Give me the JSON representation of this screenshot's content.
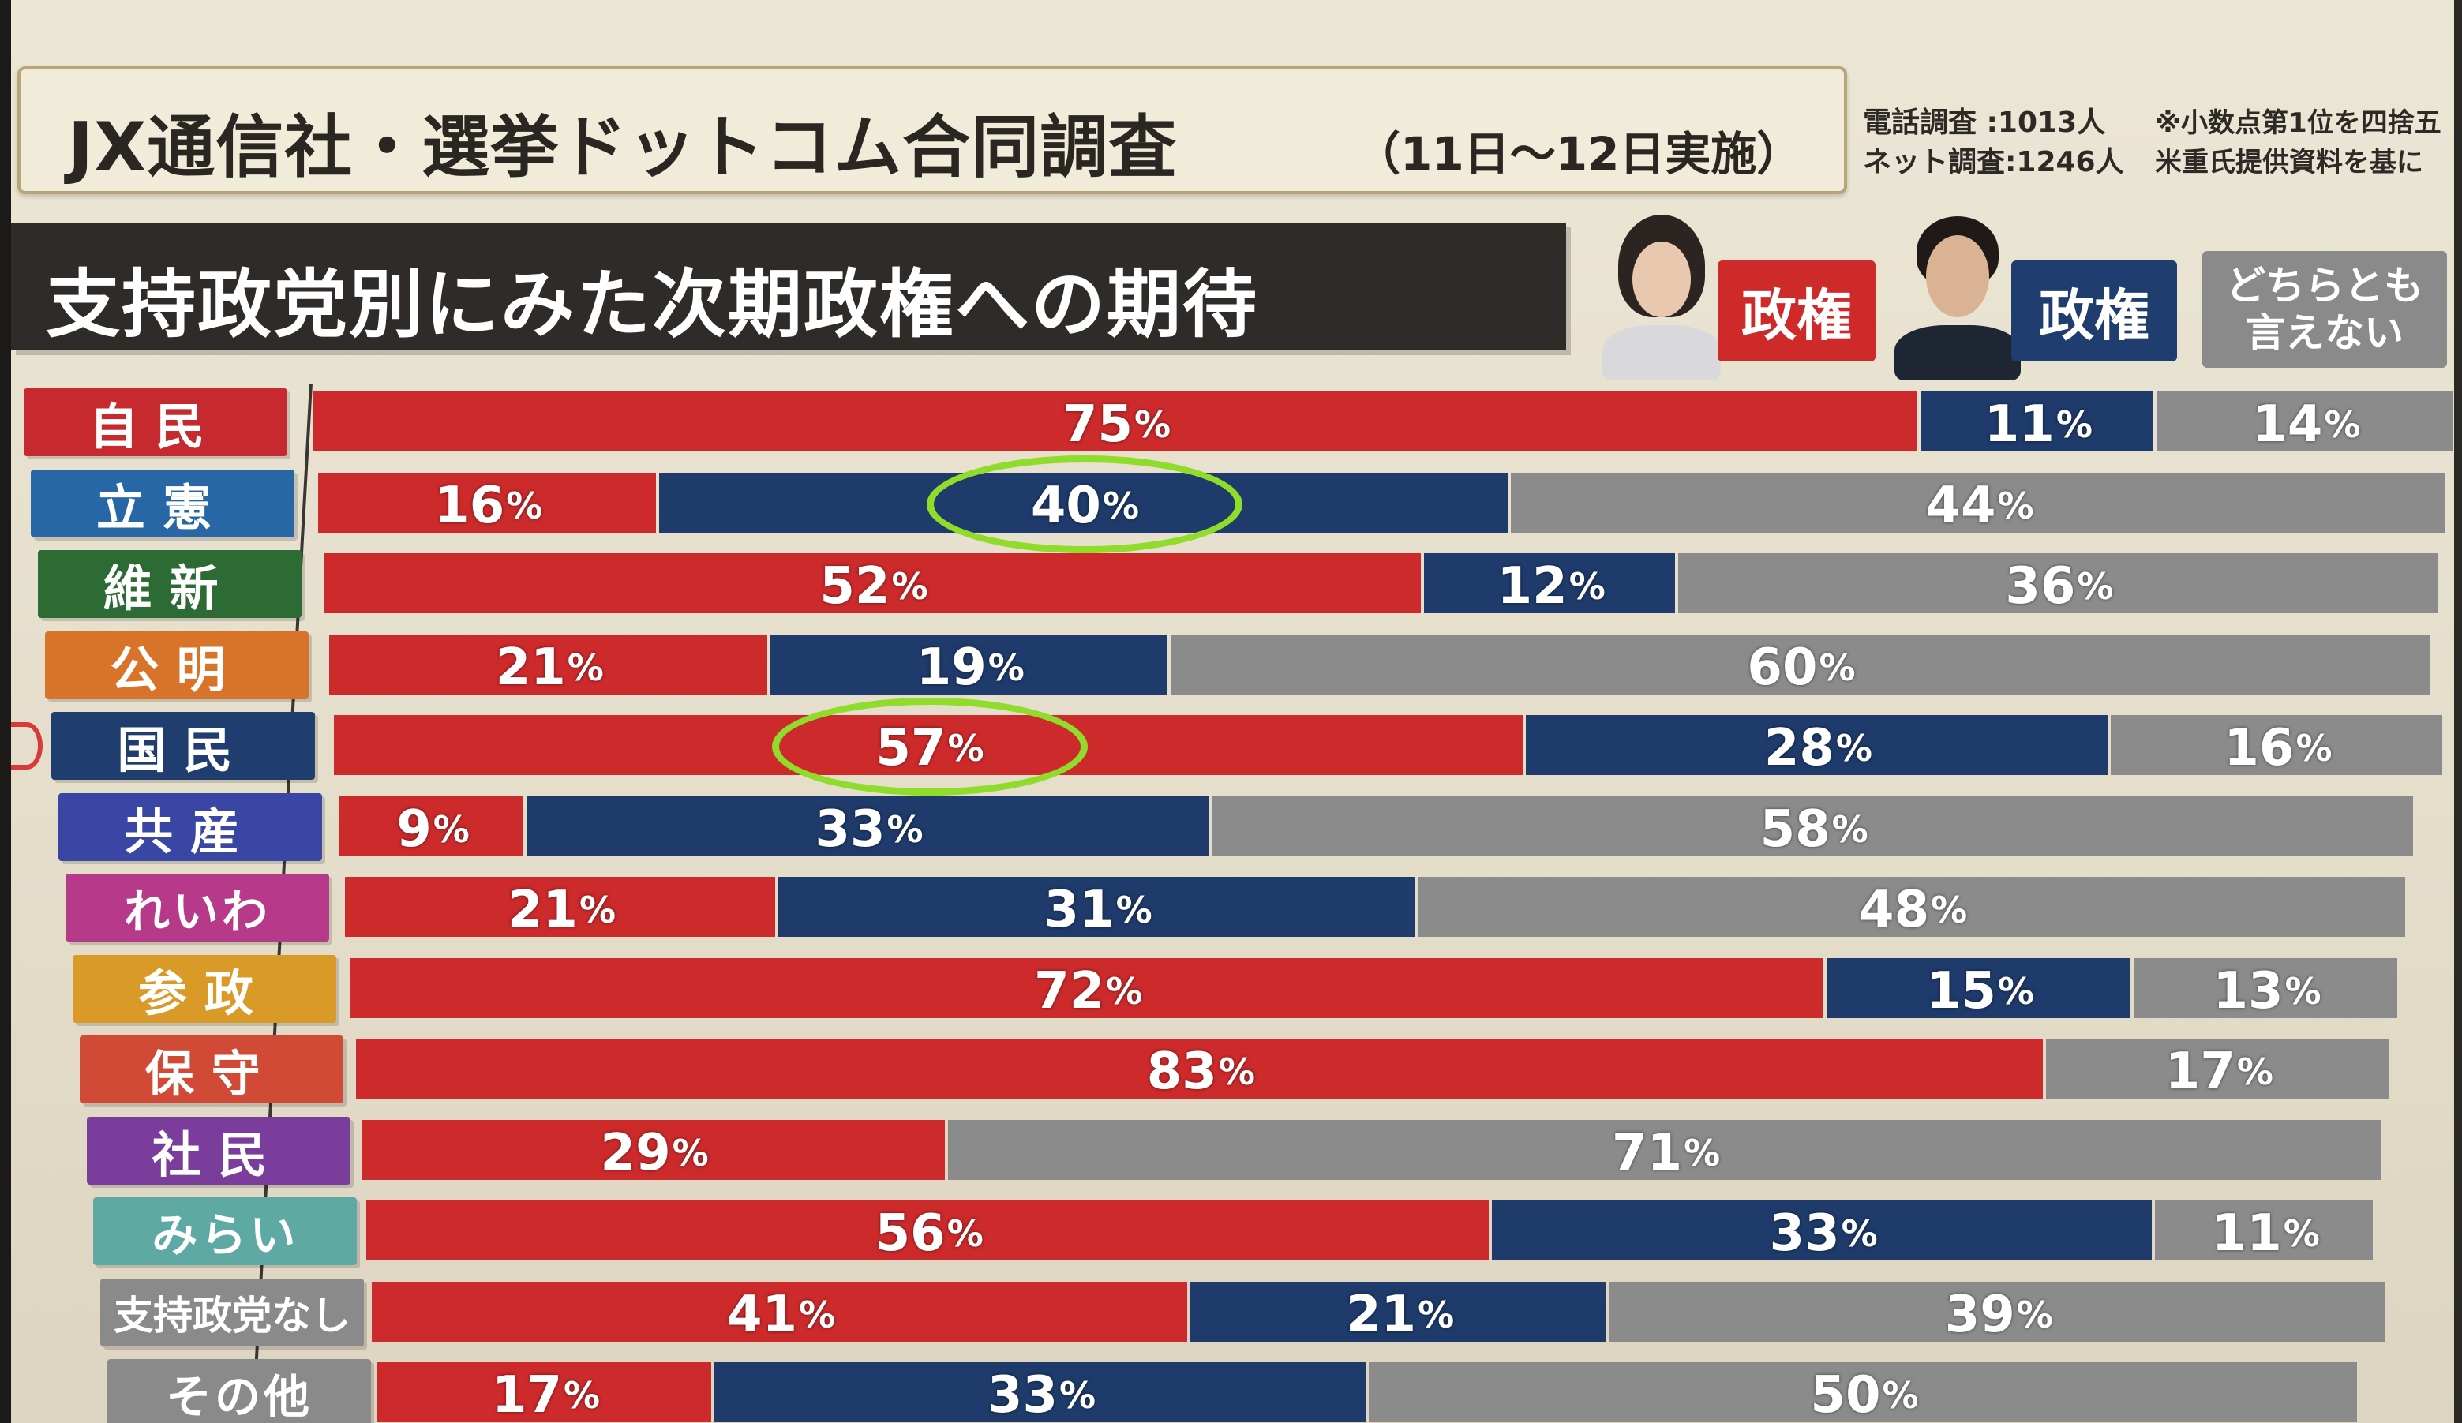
{
  "header": {
    "title_main": "JX通信社・選挙ドットコム合同調査",
    "title_sub": "（11日〜12日実施）",
    "phone_survey": "電話調査 :1013人",
    "net_survey": "ネット調査:1246人",
    "note_line1": "※小数点第1位を四捨五",
    "note_line2": "米重氏提供資料を基に"
  },
  "subtitle": "支持政党別にみた次期政権への期待",
  "legend": {
    "red_label": "政権",
    "navy_label": "政権",
    "gray_line1": "どちらとも",
    "gray_line2": "言えない",
    "colors": {
      "red": "#cd2a2b",
      "navy": "#1e3b6b",
      "gray": "#8b8b8b"
    }
  },
  "percent_sign": "%",
  "chart_data": {
    "type": "bar",
    "stacked": true,
    "orientation": "horizontal",
    "categories": [
      "自民",
      "立憲",
      "維新",
      "公明",
      "国民",
      "共産",
      "れいわ",
      "参政",
      "保守",
      "社民",
      "みらい",
      "支持政党なし",
      "その他"
    ],
    "series": [
      {
        "name": "政権",
        "color": "#cd2a2b",
        "values": [
          75,
          16,
          52,
          21,
          57,
          9,
          21,
          72,
          83,
          29,
          56,
          41,
          17
        ]
      },
      {
        "name": "政権",
        "color": "#1e3b6b",
        "values": [
          11,
          40,
          12,
          19,
          28,
          33,
          31,
          15,
          0,
          0,
          33,
          21,
          33
        ]
      },
      {
        "name": "どちらとも言えない",
        "color": "#8b8b8b",
        "values": [
          14,
          44,
          36,
          60,
          16,
          58,
          48,
          13,
          17,
          71,
          11,
          39,
          50
        ]
      }
    ],
    "label_colors": [
      "#c62a2e",
      "#2767a6",
      "#2d6b35",
      "#d8742a",
      "#1f3d6e",
      "#3a46a3",
      "#b7398a",
      "#d99a28",
      "#d14a35",
      "#7a3d9c",
      "#5fa9a5",
      "#8a8a8a",
      "#8a8a8a"
    ],
    "highlighted": [
      {
        "category": "立憲",
        "series": 1
      },
      {
        "category": "国民",
        "series": 0
      }
    ],
    "xlim": [
      0,
      100
    ]
  }
}
